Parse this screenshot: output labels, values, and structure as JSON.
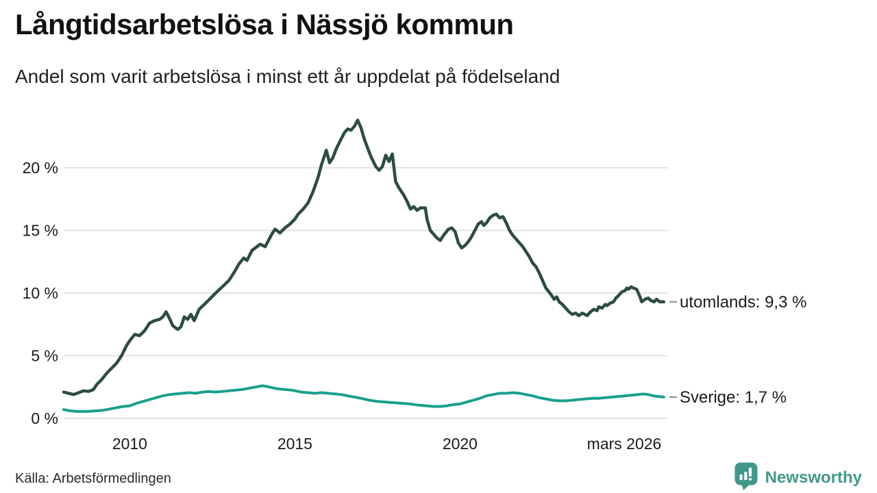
{
  "header": {
    "title": "Långtidsarbetslösa i Nässjö kommun",
    "subtitle": "Andel som varit arbetslösa i minst ett år uppdelat på födelseland"
  },
  "footer": {
    "source": "Källa: Arbetsförmedlingen",
    "brand": "Newsworthy"
  },
  "colors": {
    "utomlands_line": "#2b4c41",
    "sverige_line": "#19a08c",
    "brand_teal": "#3f998b",
    "gridline": "#e3e3e3",
    "text": "#1a1a1a",
    "label_dash": "#8a8a8a"
  },
  "chart_data": {
    "type": "line",
    "title": "Långtidsarbetslösa i Nässjö kommun",
    "subtitle": "Andel som varit arbetslösa i minst ett år uppdelat på födelseland",
    "unit": "%",
    "grid": "horizontal",
    "legend_position": "right-end-labels",
    "x_range": [
      2008.0,
      2026.25
    ],
    "y_range": [
      0,
      24.5
    ],
    "y_ticks": [
      {
        "value": 0,
        "label": "0 %"
      },
      {
        "value": 5,
        "label": "5 %"
      },
      {
        "value": 10,
        "label": "10 %"
      },
      {
        "value": 15,
        "label": "15 %"
      },
      {
        "value": 20,
        "label": "20 %"
      }
    ],
    "x_ticks": [
      {
        "year": 2010,
        "label": "2010"
      },
      {
        "year": 2015,
        "label": "2015"
      },
      {
        "year": 2020,
        "label": "2020"
      },
      {
        "year": 2025.0,
        "label": "mars 2026"
      }
    ],
    "series": [
      {
        "name": "utomlands",
        "label": "utomlands: 9,3 %",
        "end_value": 9.3,
        "color": "#2b4c41",
        "width": 4.5,
        "points": [
          [
            2008.0,
            2.1
          ],
          [
            2008.15,
            2.0
          ],
          [
            2008.3,
            1.9
          ],
          [
            2008.45,
            2.05
          ],
          [
            2008.6,
            2.2
          ],
          [
            2008.75,
            2.15
          ],
          [
            2008.9,
            2.3
          ],
          [
            2009.0,
            2.7
          ],
          [
            2009.15,
            3.1
          ],
          [
            2009.3,
            3.6
          ],
          [
            2009.45,
            4.0
          ],
          [
            2009.6,
            4.4
          ],
          [
            2009.75,
            5.0
          ],
          [
            2009.9,
            5.8
          ],
          [
            2010.0,
            6.2
          ],
          [
            2010.15,
            6.7
          ],
          [
            2010.3,
            6.6
          ],
          [
            2010.45,
            7.0
          ],
          [
            2010.6,
            7.6
          ],
          [
            2010.75,
            7.8
          ],
          [
            2010.9,
            7.9
          ],
          [
            2011.0,
            8.1
          ],
          [
            2011.1,
            8.5
          ],
          [
            2011.2,
            8.0
          ],
          [
            2011.3,
            7.4
          ],
          [
            2011.45,
            7.1
          ],
          [
            2011.55,
            7.3
          ],
          [
            2011.65,
            8.1
          ],
          [
            2011.75,
            7.9
          ],
          [
            2011.85,
            8.3
          ],
          [
            2011.95,
            7.8
          ],
          [
            2012.1,
            8.7
          ],
          [
            2012.3,
            9.2
          ],
          [
            2012.45,
            9.6
          ],
          [
            2012.6,
            10.0
          ],
          [
            2012.8,
            10.5
          ],
          [
            2013.0,
            11.0
          ],
          [
            2013.15,
            11.6
          ],
          [
            2013.3,
            12.3
          ],
          [
            2013.45,
            12.8
          ],
          [
            2013.55,
            12.6
          ],
          [
            2013.7,
            13.4
          ],
          [
            2013.95,
            13.9
          ],
          [
            2014.1,
            13.7
          ],
          [
            2014.3,
            14.7
          ],
          [
            2014.4,
            15.1
          ],
          [
            2014.55,
            14.8
          ],
          [
            2014.7,
            15.2
          ],
          [
            2014.85,
            15.5
          ],
          [
            2015.0,
            15.9
          ],
          [
            2015.1,
            16.3
          ],
          [
            2015.25,
            16.7
          ],
          [
            2015.4,
            17.2
          ],
          [
            2015.55,
            18.1
          ],
          [
            2015.7,
            19.2
          ],
          [
            2015.8,
            20.2
          ],
          [
            2015.95,
            21.4
          ],
          [
            2016.05,
            20.4
          ],
          [
            2016.15,
            20.8
          ],
          [
            2016.25,
            21.5
          ],
          [
            2016.4,
            22.3
          ],
          [
            2016.5,
            22.8
          ],
          [
            2016.6,
            23.1
          ],
          [
            2016.7,
            23.0
          ],
          [
            2016.8,
            23.3
          ],
          [
            2016.9,
            23.8
          ],
          [
            2017.0,
            23.2
          ],
          [
            2017.1,
            22.3
          ],
          [
            2017.2,
            21.6
          ],
          [
            2017.3,
            20.9
          ],
          [
            2017.45,
            20.1
          ],
          [
            2017.55,
            19.8
          ],
          [
            2017.65,
            20.1
          ],
          [
            2017.75,
            21.0
          ],
          [
            2017.85,
            20.5
          ],
          [
            2017.95,
            21.1
          ],
          [
            2018.05,
            18.9
          ],
          [
            2018.15,
            18.4
          ],
          [
            2018.3,
            17.8
          ],
          [
            2018.4,
            17.3
          ],
          [
            2018.5,
            16.7
          ],
          [
            2018.6,
            16.9
          ],
          [
            2018.7,
            16.6
          ],
          [
            2018.8,
            16.8
          ],
          [
            2018.95,
            16.8
          ],
          [
            2019.0,
            15.9
          ],
          [
            2019.1,
            15.0
          ],
          [
            2019.2,
            14.7
          ],
          [
            2019.3,
            14.4
          ],
          [
            2019.4,
            14.2
          ],
          [
            2019.5,
            14.6
          ],
          [
            2019.65,
            15.1
          ],
          [
            2019.75,
            15.2
          ],
          [
            2019.85,
            14.9
          ],
          [
            2019.95,
            14.0
          ],
          [
            2020.05,
            13.6
          ],
          [
            2020.15,
            13.8
          ],
          [
            2020.25,
            14.1
          ],
          [
            2020.35,
            14.5
          ],
          [
            2020.45,
            15.0
          ],
          [
            2020.55,
            15.5
          ],
          [
            2020.65,
            15.7
          ],
          [
            2020.72,
            15.4
          ],
          [
            2020.8,
            15.6
          ],
          [
            2020.9,
            16.0
          ],
          [
            2021.0,
            16.2
          ],
          [
            2021.1,
            16.3
          ],
          [
            2021.2,
            16.0
          ],
          [
            2021.3,
            16.1
          ],
          [
            2021.4,
            15.6
          ],
          [
            2021.5,
            15.0
          ],
          [
            2021.6,
            14.6
          ],
          [
            2021.7,
            14.3
          ],
          [
            2021.8,
            14.0
          ],
          [
            2021.9,
            13.7
          ],
          [
            2022.0,
            13.3
          ],
          [
            2022.1,
            12.9
          ],
          [
            2022.2,
            12.4
          ],
          [
            2022.3,
            12.1
          ],
          [
            2022.4,
            11.6
          ],
          [
            2022.5,
            11.0
          ],
          [
            2022.6,
            10.4
          ],
          [
            2022.75,
            9.9
          ],
          [
            2022.85,
            9.5
          ],
          [
            2022.93,
            9.7
          ],
          [
            2023.0,
            9.3
          ],
          [
            2023.1,
            9.1
          ],
          [
            2023.2,
            8.8
          ],
          [
            2023.3,
            8.5
          ],
          [
            2023.4,
            8.3
          ],
          [
            2023.5,
            8.4
          ],
          [
            2023.6,
            8.2
          ],
          [
            2023.7,
            8.4
          ],
          [
            2023.85,
            8.2
          ],
          [
            2023.95,
            8.5
          ],
          [
            2024.05,
            8.7
          ],
          [
            2024.15,
            8.6
          ],
          [
            2024.2,
            8.9
          ],
          [
            2024.3,
            8.8
          ],
          [
            2024.4,
            9.1
          ],
          [
            2024.45,
            9.0
          ],
          [
            2024.55,
            9.2
          ],
          [
            2024.65,
            9.3
          ],
          [
            2024.72,
            9.6
          ],
          [
            2024.8,
            9.8
          ],
          [
            2024.9,
            10.1
          ],
          [
            2025.0,
            10.2
          ],
          [
            2025.05,
            10.4
          ],
          [
            2025.1,
            10.3
          ],
          [
            2025.18,
            10.5
          ],
          [
            2025.25,
            10.4
          ],
          [
            2025.35,
            10.3
          ],
          [
            2025.45,
            9.7
          ],
          [
            2025.5,
            9.3
          ],
          [
            2025.6,
            9.5
          ],
          [
            2025.7,
            9.6
          ],
          [
            2025.78,
            9.4
          ],
          [
            2025.88,
            9.3
          ],
          [
            2025.95,
            9.5
          ],
          [
            2026.05,
            9.3
          ],
          [
            2026.17,
            9.3
          ]
        ]
      },
      {
        "name": "Sverige",
        "label": "Sverige: 1,7 %",
        "end_value": 1.7,
        "color": "#19a08c",
        "width": 4,
        "points": [
          [
            2008.0,
            0.7
          ],
          [
            2008.2,
            0.6
          ],
          [
            2008.4,
            0.55
          ],
          [
            2008.7,
            0.55
          ],
          [
            2009.0,
            0.6
          ],
          [
            2009.2,
            0.65
          ],
          [
            2009.4,
            0.75
          ],
          [
            2009.6,
            0.85
          ],
          [
            2009.8,
            0.95
          ],
          [
            2010.0,
            1.0
          ],
          [
            2010.2,
            1.2
          ],
          [
            2010.4,
            1.35
          ],
          [
            2010.6,
            1.5
          ],
          [
            2010.8,
            1.65
          ],
          [
            2011.0,
            1.8
          ],
          [
            2011.2,
            1.9
          ],
          [
            2011.4,
            1.95
          ],
          [
            2011.6,
            2.0
          ],
          [
            2011.8,
            2.05
          ],
          [
            2012.0,
            2.0
          ],
          [
            2012.2,
            2.1
          ],
          [
            2012.4,
            2.15
          ],
          [
            2012.6,
            2.1
          ],
          [
            2012.8,
            2.15
          ],
          [
            2013.0,
            2.2
          ],
          [
            2013.2,
            2.25
          ],
          [
            2013.4,
            2.3
          ],
          [
            2013.6,
            2.4
          ],
          [
            2013.8,
            2.5
          ],
          [
            2014.0,
            2.6
          ],
          [
            2014.15,
            2.55
          ],
          [
            2014.3,
            2.45
          ],
          [
            2014.5,
            2.35
          ],
          [
            2014.7,
            2.3
          ],
          [
            2014.9,
            2.25
          ],
          [
            2015.0,
            2.2
          ],
          [
            2015.2,
            2.1
          ],
          [
            2015.4,
            2.05
          ],
          [
            2015.6,
            2.0
          ],
          [
            2015.8,
            2.05
          ],
          [
            2016.0,
            2.0
          ],
          [
            2016.2,
            1.95
          ],
          [
            2016.4,
            1.9
          ],
          [
            2016.6,
            1.8
          ],
          [
            2016.8,
            1.7
          ],
          [
            2017.0,
            1.6
          ],
          [
            2017.25,
            1.45
          ],
          [
            2017.5,
            1.35
          ],
          [
            2017.75,
            1.3
          ],
          [
            2018.0,
            1.25
          ],
          [
            2018.25,
            1.2
          ],
          [
            2018.5,
            1.15
          ],
          [
            2018.75,
            1.05
          ],
          [
            2019.0,
            1.0
          ],
          [
            2019.2,
            0.95
          ],
          [
            2019.4,
            0.95
          ],
          [
            2019.6,
            1.0
          ],
          [
            2019.8,
            1.1
          ],
          [
            2020.0,
            1.15
          ],
          [
            2020.2,
            1.3
          ],
          [
            2020.4,
            1.45
          ],
          [
            2020.6,
            1.6
          ],
          [
            2020.8,
            1.8
          ],
          [
            2021.0,
            1.9
          ],
          [
            2021.2,
            2.0
          ],
          [
            2021.4,
            2.0
          ],
          [
            2021.6,
            2.05
          ],
          [
            2021.8,
            2.0
          ],
          [
            2022.0,
            1.9
          ],
          [
            2022.2,
            1.8
          ],
          [
            2022.4,
            1.65
          ],
          [
            2022.6,
            1.55
          ],
          [
            2022.8,
            1.45
          ],
          [
            2023.0,
            1.4
          ],
          [
            2023.2,
            1.4
          ],
          [
            2023.4,
            1.45
          ],
          [
            2023.6,
            1.5
          ],
          [
            2023.8,
            1.55
          ],
          [
            2024.0,
            1.6
          ],
          [
            2024.2,
            1.6
          ],
          [
            2024.4,
            1.65
          ],
          [
            2024.6,
            1.7
          ],
          [
            2024.8,
            1.75
          ],
          [
            2025.0,
            1.8
          ],
          [
            2025.2,
            1.85
          ],
          [
            2025.4,
            1.9
          ],
          [
            2025.55,
            1.95
          ],
          [
            2025.7,
            1.9
          ],
          [
            2025.85,
            1.8
          ],
          [
            2026.0,
            1.75
          ],
          [
            2026.17,
            1.7
          ]
        ]
      }
    ]
  }
}
